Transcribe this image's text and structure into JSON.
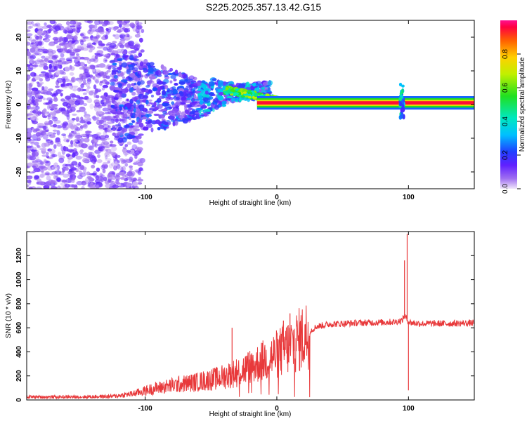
{
  "title": "S225.2025.357.13.42.G15",
  "chart_data": [
    {
      "type": "heatmap",
      "name": "spectrogram",
      "xlabel": "Height of straight line (km)",
      "ylabel": "Frequency (Hz)",
      "xlim": [
        -190,
        150
      ],
      "ylim": [
        -25,
        25
      ],
      "xticks": [
        -100,
        0,
        100
      ],
      "yticks": [
        -20,
        -10,
        0,
        10,
        20
      ],
      "colorbar": {
        "label": "Normalized spectral amplitude",
        "range": [
          0,
          1
        ],
        "ticks": [
          0.0,
          0.2,
          0.4,
          0.6,
          0.8
        ],
        "tick_labels": [
          "0.0",
          "0.2",
          "0.4",
          "0.6",
          "0.8"
        ]
      },
      "features": {
        "carrier_line": {
          "freq_hz": 0.5,
          "x_start": -15,
          "x_end": 150,
          "amplitude": 1.0
        },
        "disturbance_at_x": 95,
        "noisy_region_x": [
          -190,
          -110
        ]
      }
    },
    {
      "type": "line",
      "name": "snr",
      "xlabel": "Height of straight line (km)",
      "ylabel": "SNR (10 * v/v)",
      "xlim": [
        -190,
        150
      ],
      "ylim": [
        0,
        1400
      ],
      "xticks": [
        -100,
        0,
        100
      ],
      "yticks": [
        0,
        200,
        400,
        600,
        800,
        1000,
        1200
      ],
      "color": "#e8393b",
      "envelope": {
        "x": [
          -190,
          -150,
          -125,
          -110,
          -95,
          -80,
          -60,
          -45,
          -30,
          -15,
          0,
          10,
          20,
          25,
          30,
          40,
          60,
          80,
          90,
          95,
          97,
          100,
          103,
          110,
          130,
          150
        ],
        "y": [
          25,
          25,
          30,
          50,
          90,
          120,
          150,
          180,
          230,
          300,
          380,
          450,
          520,
          570,
          610,
          630,
          640,
          645,
          650,
          660,
          700,
          650,
          640,
          635,
          635,
          640
        ]
      },
      "spikes": [
        {
          "x": -34,
          "y": 600
        },
        {
          "x": 10,
          "y": 720
        },
        {
          "x": 5,
          "y": 660
        },
        {
          "x": 97,
          "y": 1160
        },
        {
          "x": 99,
          "y": 1380
        },
        {
          "x": 100,
          "y": 80
        }
      ]
    }
  ]
}
